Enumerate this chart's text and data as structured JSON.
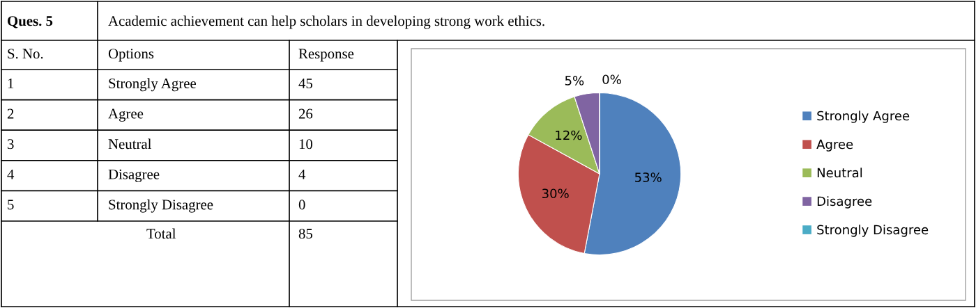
{
  "chart_data": {
    "type": "pie",
    "title": "Ques. 5",
    "subtitle": "Academic achievement can help scholars in developing strong work ethics.",
    "categories": [
      "Strongly Agree",
      "Agree",
      "Neutral",
      "Disagree",
      "Strongly Disagree"
    ],
    "values": [
      53,
      30,
      12,
      5,
      0
    ],
    "value_labels": [
      "53%",
      "30%",
      "12%",
      "5%",
      "0%"
    ],
    "colors": [
      "#4f81bd",
      "#c0504d",
      "#9bbb59",
      "#8064a2",
      "#4bacc6"
    ],
    "legend": "right",
    "annotations": [
      "S. No.",
      "Options",
      "Response",
      "1",
      "2",
      "3",
      "4",
      "5",
      "Total",
      "85",
      "45",
      "26",
      "10",
      "4",
      "0"
    ]
  }
}
